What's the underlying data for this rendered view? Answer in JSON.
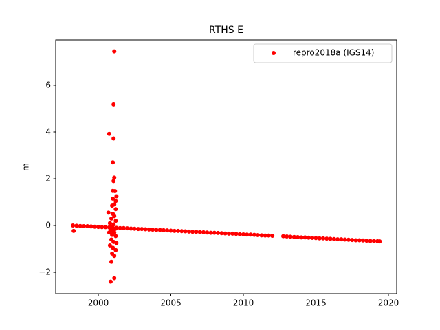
{
  "chart_data": {
    "type": "scatter",
    "title": "RTHS E",
    "y_label": "m",
    "x": [
      1998.25,
      1998.3,
      1998.5,
      1998.75,
      1999,
      1999.25,
      1999.5,
      1999.75,
      2000,
      2000.25,
      2000.5,
      2000.75,
      2001,
      2001.25,
      2001.5,
      2001.75,
      2002,
      2002.25,
      2002.5,
      2002.75,
      2003,
      2003.25,
      2003.5,
      2003.75,
      2004,
      2004.25,
      2004.5,
      2004.75,
      2005,
      2005.25,
      2005.5,
      2005.75,
      2006,
      2006.25,
      2006.5,
      2006.75,
      2007,
      2007.25,
      2007.5,
      2007.75,
      2008,
      2008.25,
      2008.5,
      2008.75,
      2009,
      2009.25,
      2009.5,
      2009.75,
      2010,
      2010.25,
      2010.5,
      2010.75,
      2011,
      2011.25,
      2011.5,
      2011.75,
      2012,
      2012.75,
      2013,
      2013.25,
      2013.5,
      2013.75,
      2014,
      2014.25,
      2014.5,
      2014.75,
      2015,
      2015.25,
      2015.5,
      2015.75,
      2016,
      2016.25,
      2016.5,
      2016.75,
      2017,
      2017.25,
      2017.5,
      2017.75,
      2018,
      2018.25,
      2018.5,
      2018.75,
      2019,
      2019.25,
      2019.4,
      2001.1,
      2001.05,
      2000.75,
      2001.05,
      2001.0,
      2001.1,
      2001.05,
      2001.0,
      2001.15,
      2001.25,
      2001.0,
      2001.2,
      2000.95,
      2001.1,
      2001.2,
      2000.7,
      2001.0,
      2001.1,
      2000.9,
      2001.2,
      2000.8,
      2001.05,
      2000.9,
      2001.15,
      2000.85,
      2001.1,
      2000.95,
      2001.2,
      2000.9,
      2001.05,
      2001.25,
      2000.8,
      2001.0,
      2001.2,
      2000.95,
      2001.1,
      2000.9,
      2000.85,
      2001.1,
      2000.75,
      2001.0
    ],
    "series": [
      {
        "name": "repro2018a (IGS14)",
        "color": "#ff0000",
        "values": [
          0.0,
          -0.23,
          -0.01,
          -0.02,
          -0.03,
          -0.03,
          -0.04,
          -0.05,
          -0.06,
          -0.07,
          -0.07,
          -0.08,
          -0.09,
          -0.1,
          -0.11,
          -0.11,
          -0.12,
          -0.13,
          -0.14,
          -0.15,
          -0.15,
          -0.16,
          -0.17,
          -0.18,
          -0.19,
          -0.19,
          -0.2,
          -0.21,
          -0.22,
          -0.23,
          -0.23,
          -0.24,
          -0.25,
          -0.26,
          -0.27,
          -0.27,
          -0.28,
          -0.29,
          -0.3,
          -0.31,
          -0.31,
          -0.32,
          -0.33,
          -0.34,
          -0.35,
          -0.35,
          -0.36,
          -0.37,
          -0.38,
          -0.39,
          -0.39,
          -0.4,
          -0.41,
          -0.42,
          -0.43,
          -0.43,
          -0.44,
          -0.46,
          -0.47,
          -0.48,
          -0.49,
          -0.5,
          -0.51,
          -0.51,
          -0.52,
          -0.53,
          -0.54,
          -0.55,
          -0.55,
          -0.56,
          -0.57,
          -0.58,
          -0.59,
          -0.59,
          -0.6,
          -0.61,
          -0.62,
          -0.63,
          -0.63,
          -0.64,
          -0.65,
          -0.66,
          -0.66,
          -0.67,
          -0.68,
          7.45,
          5.18,
          3.92,
          3.72,
          2.7,
          2.05,
          1.9,
          1.48,
          1.47,
          1.25,
          1.15,
          1.05,
          0.85,
          0.9,
          0.7,
          0.55,
          0.5,
          0.4,
          0.3,
          0.2,
          0.1,
          0.05,
          -0.05,
          -0.15,
          -0.2,
          -0.3,
          -0.4,
          -0.45,
          -0.6,
          -0.7,
          -0.75,
          -0.85,
          -0.95,
          -1.05,
          -1.2,
          -1.3,
          -1.55,
          -2.4,
          -2.25,
          -0.3,
          -0.25
        ]
      }
    ],
    "xlim": [
      1997.06,
      2020.57
    ],
    "ylim": [
      -2.91,
      7.94
    ],
    "xticks": [
      2000,
      2005,
      2010,
      2015,
      2020
    ],
    "yticks": [
      {
        "value": -2,
        "label": "−2"
      },
      0,
      2,
      4,
      6
    ],
    "legend": "upper right"
  }
}
